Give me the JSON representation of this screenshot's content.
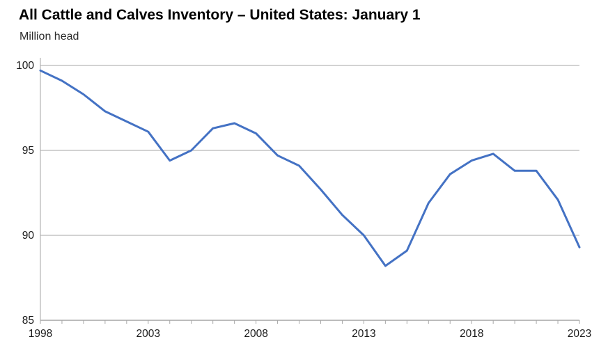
{
  "page": {
    "title": "All Cattle and Calves Inventory – United States: January 1",
    "subtitle": "Million head"
  },
  "chart_data": {
    "type": "line",
    "title": "All Cattle and Calves Inventory – United States: January 1",
    "ylabel": "Million head",
    "xlabel": "",
    "x": [
      1998,
      1999,
      2000,
      2001,
      2002,
      2003,
      2004,
      2005,
      2006,
      2007,
      2008,
      2009,
      2010,
      2011,
      2012,
      2013,
      2014,
      2015,
      2016,
      2017,
      2018,
      2019,
      2020,
      2021,
      2022,
      2023
    ],
    "series": [
      {
        "name": "All cattle and calves inventory (million head)",
        "values": [
          99.7,
          99.1,
          98.3,
          97.3,
          96.7,
          96.1,
          94.4,
          95.0,
          96.3,
          96.6,
          96.0,
          94.7,
          94.1,
          92.7,
          91.2,
          90.0,
          88.2,
          89.1,
          91.9,
          93.6,
          94.4,
          94.8,
          93.8,
          93.8,
          92.1,
          89.3
        ]
      }
    ],
    "ylim": [
      85,
      100
    ],
    "y_ticks": [
      85,
      90,
      95,
      100
    ],
    "x_tick_labels": [
      "1998",
      "2003",
      "2008",
      "2013",
      "2018",
      "2023"
    ],
    "grid": true,
    "legend": false,
    "colors": {
      "line": "#4472C4",
      "gridline": "#A6A6A6",
      "axis": "#A6A6A6",
      "tick_label": "#1a1a1a"
    }
  }
}
